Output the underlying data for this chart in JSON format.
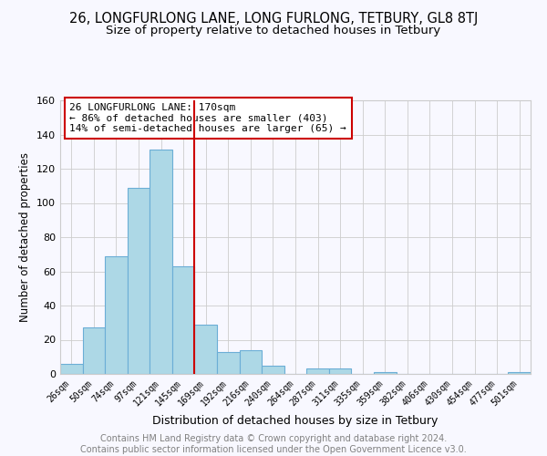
{
  "title": "26, LONGFURLONG LANE, LONG FURLONG, TETBURY, GL8 8TJ",
  "subtitle": "Size of property relative to detached houses in Tetbury",
  "xlabel": "Distribution of detached houses by size in Tetbury",
  "ylabel": "Number of detached properties",
  "bar_labels": [
    "26sqm",
    "50sqm",
    "74sqm",
    "97sqm",
    "121sqm",
    "145sqm",
    "169sqm",
    "192sqm",
    "216sqm",
    "240sqm",
    "264sqm",
    "287sqm",
    "311sqm",
    "335sqm",
    "359sqm",
    "382sqm",
    "406sqm",
    "430sqm",
    "454sqm",
    "477sqm",
    "501sqm"
  ],
  "bar_heights": [
    6,
    27,
    69,
    109,
    131,
    63,
    29,
    13,
    14,
    5,
    0,
    3,
    3,
    0,
    1,
    0,
    0,
    0,
    0,
    0,
    1
  ],
  "bar_color": "#add8e6",
  "bar_edge_color": "#6baed6",
  "vline_color": "#cc0000",
  "annotation_text": "26 LONGFURLONG LANE: 170sqm\n← 86% of detached houses are smaller (403)\n14% of semi-detached houses are larger (65) →",
  "annotation_box_color": "#ffffff",
  "annotation_box_edge": "#cc0000",
  "ylim": [
    0,
    160
  ],
  "yticks": [
    0,
    20,
    40,
    60,
    80,
    100,
    120,
    140,
    160
  ],
  "footer": "Contains HM Land Registry data © Crown copyright and database right 2024.\nContains public sector information licensed under the Open Government Licence v3.0.",
  "title_fontsize": 10.5,
  "subtitle_fontsize": 9.5,
  "xlabel_fontsize": 9,
  "ylabel_fontsize": 8.5,
  "annotation_fontsize": 8,
  "footer_fontsize": 7,
  "bg_color": "#f8f8ff",
  "grid_color": "#cccccc"
}
